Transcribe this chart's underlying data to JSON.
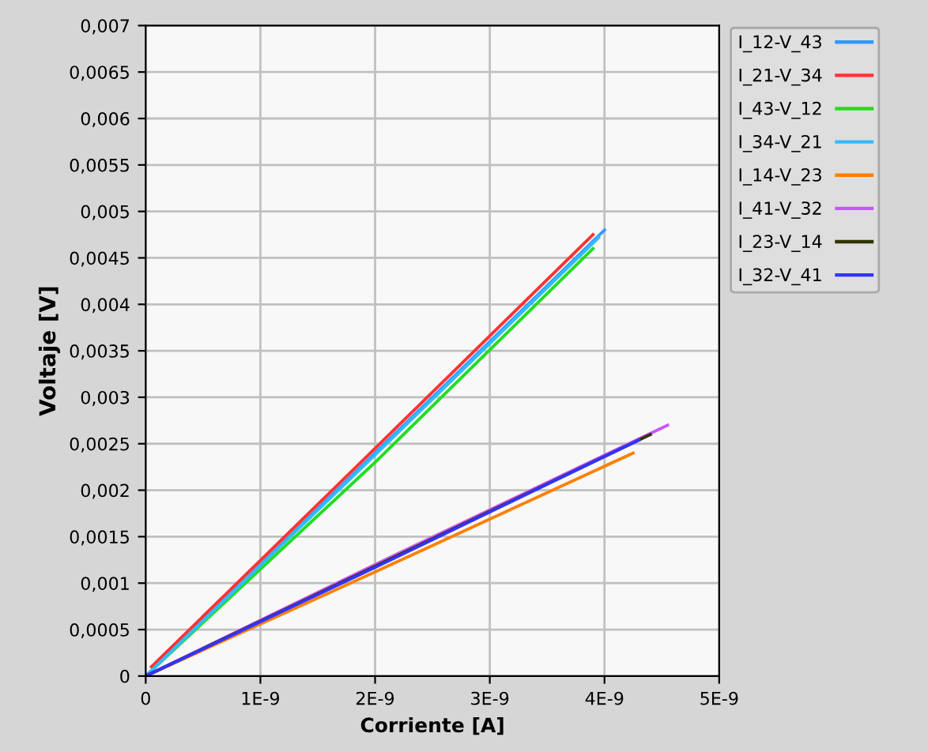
{
  "chart_data": {
    "type": "line",
    "xlabel": "Corriente [A]",
    "ylabel": "Voltaje [V]",
    "xlim": [
      0,
      5e-09
    ],
    "ylim": [
      0,
      0.007
    ],
    "xticks": [
      0,
      {
        "value": 1e-09,
        "label": "1E-9"
      },
      {
        "value": 2e-09,
        "label": "2E-9"
      },
      {
        "value": 3e-09,
        "label": "3E-9"
      },
      {
        "value": 4e-09,
        "label": "4E-9"
      },
      {
        "value": 5e-09,
        "label": "5E-9"
      }
    ],
    "yticks": [
      0,
      {
        "value": 0.0005,
        "label": "0,0005"
      },
      {
        "value": 0.001,
        "label": "0,001"
      },
      {
        "value": 0.0015,
        "label": "0,0015"
      },
      {
        "value": 0.002,
        "label": "0,002"
      },
      {
        "value": 0.0025,
        "label": "0,0025"
      },
      {
        "value": 0.003,
        "label": "0,003"
      },
      {
        "value": 0.0035,
        "label": "0,0035"
      },
      {
        "value": 0.004,
        "label": "0,004"
      },
      {
        "value": 0.0045,
        "label": "0,0045"
      },
      {
        "value": 0.005,
        "label": "0,005"
      },
      {
        "value": 0.0055,
        "label": "0,0055"
      },
      {
        "value": 0.006,
        "label": "0,006"
      },
      {
        "value": 0.0065,
        "label": "0,0065"
      },
      {
        "value": 0.007,
        "label": "0,007"
      }
    ],
    "grid": true,
    "legend": "top right",
    "marker": "none",
    "line_style": "solid",
    "series": [
      {
        "name": "I_12-V_43",
        "color": "#3399ff",
        "x": [
          0,
          2e-09,
          4e-09
        ],
        "values": [
          0,
          0.0024,
          0.0048
        ]
      },
      {
        "name": "I_21-V_34",
        "color": "#ff3333",
        "x": [
          5e-11,
          2e-09,
          3.9e-09
        ],
        "values": [
          0.0001,
          0.00245,
          0.00475
        ]
      },
      {
        "name": "I_43-V_12",
        "color": "#22dd22",
        "x": [
          0,
          2e-09,
          3.9e-09
        ],
        "values": [
          0,
          0.0023,
          0.0046
        ]
      },
      {
        "name": "I_34-V_21",
        "color": "#33bbff",
        "x": [
          0,
          2e-09,
          3.95e-09
        ],
        "values": [
          0,
          0.00238,
          0.00472
        ]
      },
      {
        "name": "I_14-V_23",
        "color": "#ff8000",
        "x": [
          0,
          2e-09,
          4.25e-09
        ],
        "values": [
          0,
          0.00112,
          0.0024
        ]
      },
      {
        "name": "I_41-V_32",
        "color": "#cc55ff",
        "x": [
          0,
          2e-09,
          4.55e-09
        ],
        "values": [
          0,
          0.0012,
          0.0027
        ]
      },
      {
        "name": "I_23-V_14",
        "color": "#333300",
        "x": [
          0,
          2e-09,
          4.4e-09
        ],
        "values": [
          0,
          0.00118,
          0.0026
        ]
      },
      {
        "name": "I_32-V_41",
        "color": "#3333ff",
        "x": [
          0,
          2e-09,
          4.3e-09
        ],
        "values": [
          0,
          0.00117,
          0.00254
        ]
      }
    ]
  }
}
